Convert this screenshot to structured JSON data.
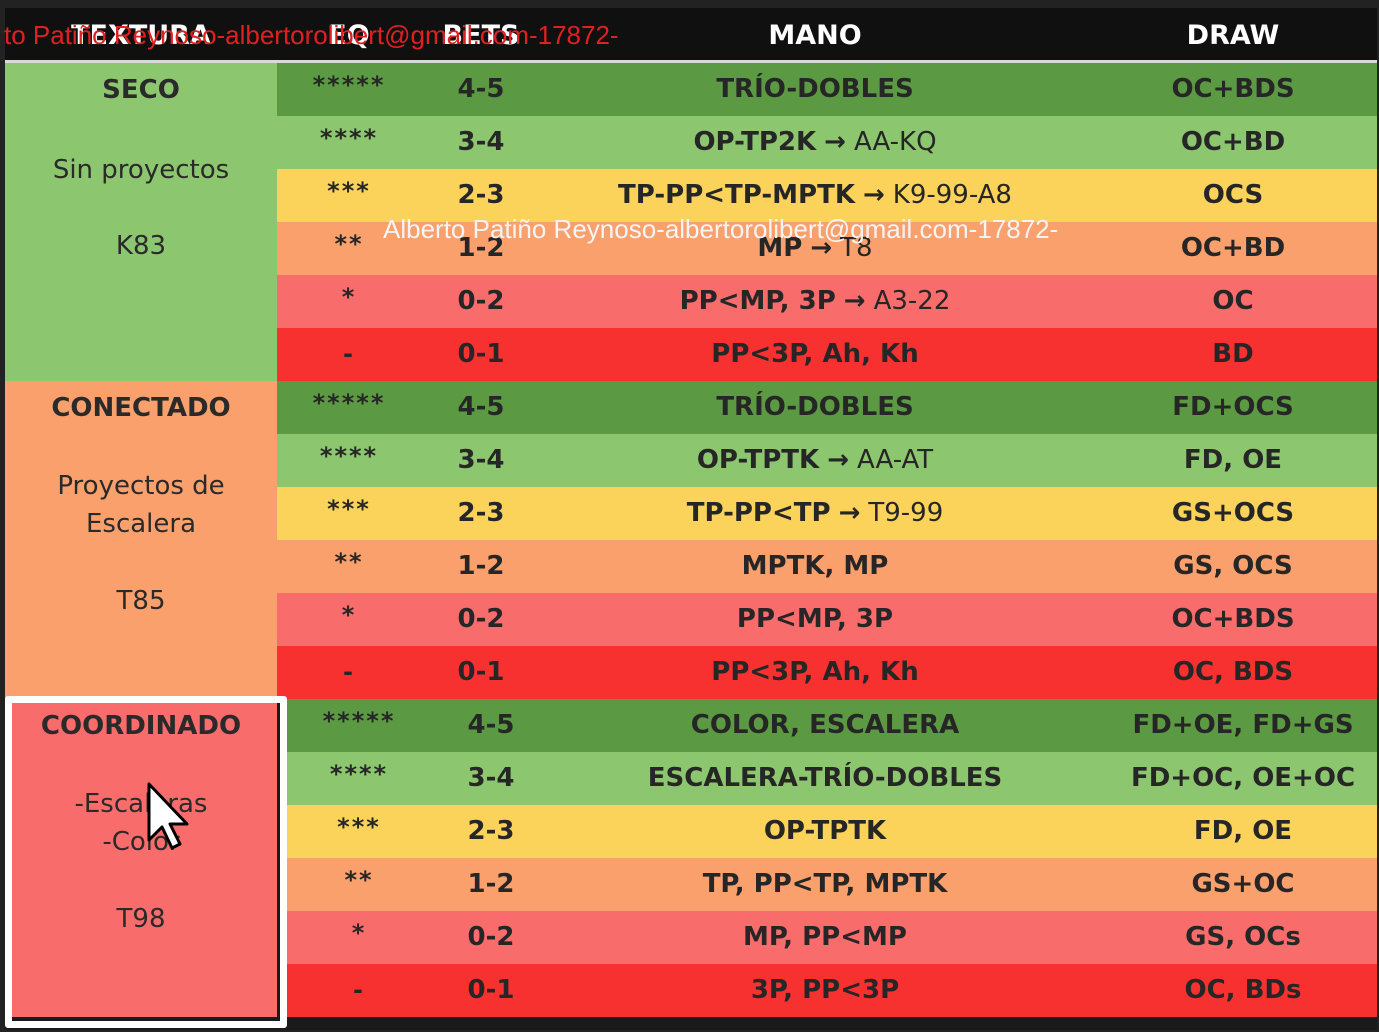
{
  "header": {
    "textura": "TEXTURA",
    "eq": "EQ",
    "bets": "BETS",
    "mano": "MANO",
    "draw": "DRAW"
  },
  "watermark_top": "to Patiño Reynoso-albertorolibert@gmail.com-17872-",
  "watermark_mid": "Alberto Patiño Reynoso-albertorolibert@gmail.com-17872-",
  "sections": [
    {
      "label": "SECO",
      "desc1": "Sin proyectos",
      "desc2": "",
      "code": "K83",
      "rows": [
        {
          "eq": "*****",
          "bets": "4-5",
          "mano_a": "TRÍO-DOBLES",
          "mano_b": "",
          "draw": "OC+BDS"
        },
        {
          "eq": "****",
          "bets": "3-4",
          "mano_a": "OP-TP2K",
          "mano_b": "AA-KQ",
          "draw": "OC+BD"
        },
        {
          "eq": "***",
          "bets": "2-3",
          "mano_a": "TP-PP<TP-MPTK",
          "mano_b": "K9-99-A8",
          "draw": "OCS"
        },
        {
          "eq": "**",
          "bets": "1-2",
          "mano_a": "MP",
          "mano_b": "T8",
          "draw": "OC+BD"
        },
        {
          "eq": "*",
          "bets": "0-2",
          "mano_a": "PP<MP, 3P",
          "mano_b": "A3-22",
          "draw": "OC"
        },
        {
          "eq": "-",
          "bets": "0-1",
          "mano_a": "PP<3P, Ah, Kh",
          "mano_b": "",
          "draw": "BD"
        }
      ]
    },
    {
      "label": "CONECTADO",
      "desc1": "Proyectos de",
      "desc2": "Escalera",
      "code": "T85",
      "rows": [
        {
          "eq": "*****",
          "bets": "4-5",
          "mano_a": "TRÍO-DOBLES",
          "mano_b": "",
          "draw": "FD+OCS"
        },
        {
          "eq": "****",
          "bets": "3-4",
          "mano_a": "OP-TPTK",
          "mano_b": "AA-AT",
          "draw": "FD, OE"
        },
        {
          "eq": "***",
          "bets": "2-3",
          "mano_a": "TP-PP<TP",
          "mano_b": "T9-99",
          "draw": "GS+OCS"
        },
        {
          "eq": "**",
          "bets": "1-2",
          "mano_a": "MPTK, MP",
          "mano_b": "",
          "draw": "GS, OCS"
        },
        {
          "eq": "*",
          "bets": "0-2",
          "mano_a": "PP<MP, 3P",
          "mano_b": "",
          "draw": "OC+BDS"
        },
        {
          "eq": "-",
          "bets": "0-1",
          "mano_a": "PP<3P, Ah, Kh",
          "mano_b": "",
          "draw": "OC, BDS"
        }
      ]
    },
    {
      "label": "COORDINADO",
      "desc1": "-Escaleras",
      "desc2": "-Color",
      "code": "T98",
      "rows": [
        {
          "eq": "*****",
          "bets": "4-5",
          "mano_a": "COLOR, ESCALERA",
          "mano_b": "",
          "draw": "FD+OE, FD+GS"
        },
        {
          "eq": "****",
          "bets": "3-4",
          "mano_a": "ESCALERA-TRÍO-DOBLES",
          "mano_b": "",
          "draw": "FD+OC, OE+OC"
        },
        {
          "eq": "***",
          "bets": "2-3",
          "mano_a": "OP-TPTK",
          "mano_b": "",
          "draw": "FD, OE"
        },
        {
          "eq": "**",
          "bets": "1-2",
          "mano_a": "TP, PP<TP, MPTK",
          "mano_b": "",
          "draw": "GS+OC"
        },
        {
          "eq": "*",
          "bets": "0-2",
          "mano_a": "MP, PP<MP",
          "mano_b": "",
          "draw": "GS, OCs"
        },
        {
          "eq": "-",
          "bets": "0-1",
          "mano_a": "3P, PP<3P",
          "mano_b": "",
          "draw": "OC, BDs"
        }
      ]
    }
  ],
  "colors": {
    "section_bg": [
      "#8cc66e",
      "#f9a06c",
      "#f86c6c"
    ],
    "row_bg": [
      "#5b9942",
      "#8cc66e",
      "#fbd25a",
      "#f9a06c",
      "#f86c6c",
      "#f7312f"
    ]
  },
  "icons": {
    "arrow": "right-arrow-icon",
    "cursor": "mouse-pointer-icon"
  }
}
